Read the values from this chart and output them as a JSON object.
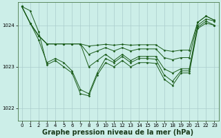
{
  "background_color": "#cceee8",
  "grid_color": "#aacccc",
  "line_color": "#1a5c1a",
  "marker_color": "#1a5c1a",
  "xlabel": "Graphe pression niveau de la mer (hPa)",
  "xlabel_fontsize": 7,
  "xlabel_bold": true,
  "ylim": [
    1021.7,
    1024.55
  ],
  "xlim": [
    -0.5,
    23.5
  ],
  "yticks": [
    1022,
    1023,
    1024
  ],
  "xticks": [
    0,
    1,
    2,
    3,
    4,
    5,
    6,
    7,
    8,
    9,
    10,
    11,
    12,
    13,
    14,
    15,
    16,
    17,
    18,
    19,
    20,
    21,
    22,
    23
  ],
  "series": [
    [
      1024.45,
      1024.05,
      1023.75,
      1023.55,
      1023.55,
      1023.55,
      1023.55,
      1023.55,
      1023.5,
      1023.52,
      1023.54,
      1023.52,
      1023.54,
      1023.52,
      1023.53,
      1023.53,
      1023.53,
      1023.4,
      1023.37,
      1023.4,
      1023.4,
      1024.07,
      1024.22,
      1024.12
    ],
    [
      1024.45,
      1024.05,
      1023.75,
      1023.55,
      1023.55,
      1023.55,
      1023.55,
      1023.55,
      1023.3,
      1023.38,
      1023.46,
      1023.38,
      1023.46,
      1023.38,
      1023.43,
      1023.43,
      1023.43,
      1023.22,
      1023.17,
      1023.22,
      1023.22,
      1024.07,
      1024.22,
      1024.12
    ],
    [
      1024.45,
      1024.05,
      1023.75,
      1023.55,
      1023.55,
      1023.55,
      1023.55,
      1023.55,
      1023.0,
      1023.15,
      1023.3,
      1023.15,
      1023.3,
      1023.15,
      1023.25,
      1023.25,
      1023.25,
      1022.95,
      1022.85,
      1022.95,
      1022.95,
      1024.0,
      1024.15,
      1024.1
    ],
    [
      1024.45,
      1024.05,
      1023.65,
      1023.1,
      1023.2,
      1023.1,
      1022.9,
      1022.45,
      1022.35,
      1022.85,
      1023.2,
      1023.1,
      1023.25,
      1023.1,
      1023.2,
      1023.2,
      1023.18,
      1022.8,
      1022.65,
      1022.9,
      1022.9,
      1023.95,
      1024.1,
      1024.0
    ],
    [
      1024.45,
      1024.35,
      1023.85,
      1023.05,
      1023.15,
      1023.0,
      1022.85,
      1022.35,
      1022.3,
      1022.8,
      1023.1,
      1023.0,
      1023.15,
      1023.0,
      1023.1,
      1023.1,
      1023.08,
      1022.7,
      1022.55,
      1022.85,
      1022.85,
      1023.92,
      1024.05,
      1024.0
    ]
  ]
}
